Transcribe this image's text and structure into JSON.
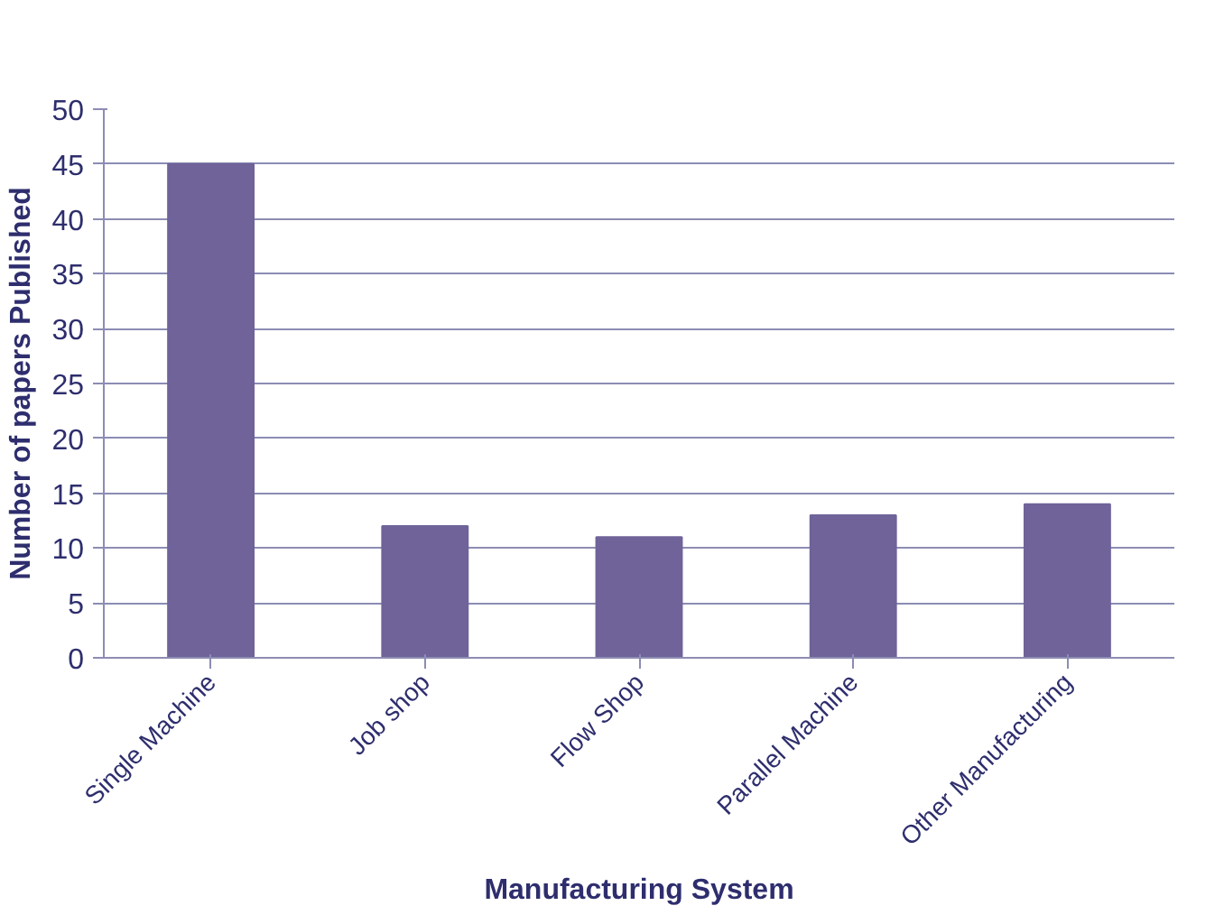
{
  "chart_data": {
    "type": "bar",
    "xlabel": "Manufacturing System",
    "ylabel": "Number of papers Published",
    "categories": [
      "Single Machine",
      "Job shop",
      "Flow Shop",
      "Parallel Machine",
      "Other Manufacturing"
    ],
    "values": [
      45,
      12,
      11,
      13,
      14
    ],
    "color": "#6f6399",
    "ylim": [
      0,
      50
    ],
    "yticks": [
      0,
      5,
      10,
      15,
      20,
      25,
      30,
      35,
      40,
      45,
      50
    ],
    "grid": "y"
  }
}
